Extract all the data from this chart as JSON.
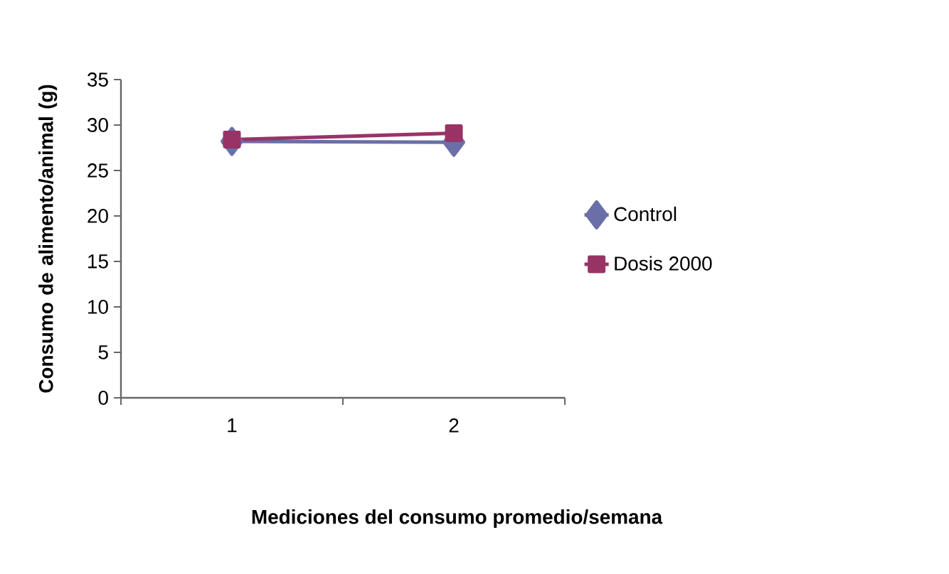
{
  "chart_data": {
    "type": "line",
    "xlabel": "Mediciones del consumo promedio/semana",
    "ylabel": "Consumo de alimento/animal (g)",
    "categories": [
      "1",
      "2"
    ],
    "series": [
      {
        "name": "Control",
        "color": "#6a6fa8",
        "marker": "diamond",
        "values": [
          28.2,
          28.1
        ]
      },
      {
        "name": "Dosis 2000",
        "color": "#993366",
        "marker": "square",
        "values": [
          28.4,
          29.1
        ]
      }
    ],
    "ylim": [
      0,
      35
    ],
    "yticks": [
      0,
      5,
      10,
      15,
      20,
      25,
      30,
      35
    ],
    "grid": false,
    "legend": "right"
  }
}
